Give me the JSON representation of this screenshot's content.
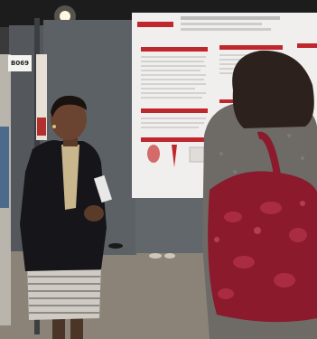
{
  "scene": {
    "sign_text": "B069",
    "palette": {
      "floor": "#8b8378",
      "board": "#5c6165",
      "poster": "#f1efee",
      "poster_accent": "#c0272d",
      "bag": "#8a1a2c",
      "sweater": "#6e6a66",
      "jacket": "#15151a",
      "skirt": "#cfcac4"
    }
  }
}
